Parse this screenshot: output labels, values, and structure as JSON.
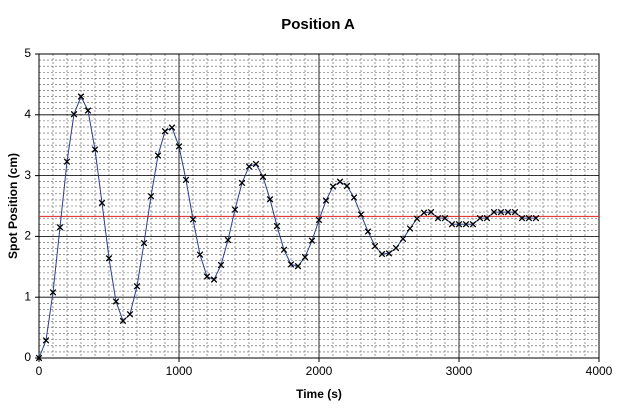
{
  "chart_data": {
    "type": "line",
    "title": "Position A",
    "x_label": "Time (s)",
    "y_label": "Spot Position (cm)",
    "x": [
      0,
      50,
      100,
      150,
      200,
      250,
      300,
      350,
      400,
      450,
      500,
      550,
      600,
      650,
      700,
      750,
      800,
      850,
      900,
      950,
      1000,
      1050,
      1100,
      1150,
      1200,
      1250,
      1300,
      1350,
      1400,
      1450,
      1500,
      1550,
      1600,
      1650,
      1700,
      1750,
      1800,
      1850,
      1900,
      1950,
      2000,
      2050,
      2100,
      2150,
      2200,
      2250,
      2300,
      2350,
      2400,
      2450,
      2500,
      2550,
      2600,
      2650,
      2700,
      2750,
      2800,
      2850,
      2900,
      2950,
      3000,
      3050,
      3100,
      3150,
      3200,
      3250,
      3300,
      3350,
      3400,
      3450,
      3500,
      3550
    ],
    "series": [
      {
        "color": "#2a3f8f",
        "marker_color": "#000000",
        "values": [
          0,
          0.29,
          1.08,
          2.15,
          3.23,
          4.01,
          4.3,
          4.07,
          3.43,
          2.55,
          1.64,
          0.93,
          0.61,
          0.72,
          1.18,
          1.89,
          2.66,
          3.33,
          3.73,
          3.79,
          3.48,
          2.93,
          2.28,
          1.7,
          1.34,
          1.29,
          1.53,
          1.94,
          2.44,
          2.88,
          3.15,
          3.19,
          2.98,
          2.61,
          2.17,
          1.78,
          1.54,
          1.51,
          1.66,
          1.93,
          2.27,
          2.59,
          2.82,
          2.9,
          2.83,
          2.64,
          2.36,
          2.08,
          1.84,
          1.71,
          1.72,
          1.81,
          1.96,
          2.13,
          2.29,
          2.39,
          2.4,
          2.3,
          2.3,
          2.2,
          2.2,
          2.2,
          2.2,
          2.3,
          2.3,
          2.4,
          2.4,
          2.4,
          2.4,
          2.3,
          2.3,
          2.3
        ]
      }
    ],
    "reference_line": {
      "value": 2.33,
      "color": "#e02020"
    },
    "xlim": [
      0,
      4000
    ],
    "xticks": [
      0,
      1000,
      2000,
      3000,
      4000
    ],
    "ylim": [
      0,
      5
    ],
    "yticks": [
      0,
      1,
      2,
      3,
      4,
      5
    ],
    "grid": true,
    "minor_grid": {
      "x_step": 100,
      "y_step": 0.1
    }
  }
}
